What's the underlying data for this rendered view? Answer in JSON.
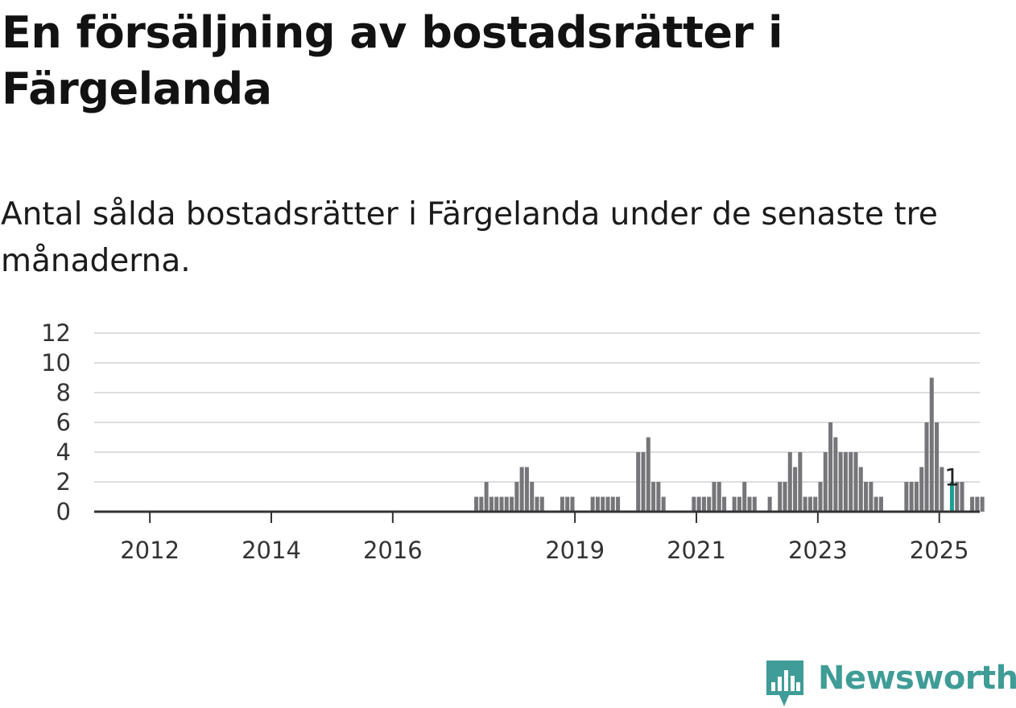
{
  "header": {
    "title": "En försäljning av bostadsrätter i Färgelanda",
    "subtitle": "Antal sålda bostadsrätter i Färgelanda under de senaste tre månaderna."
  },
  "branding": {
    "logo_text": "Newsworthy",
    "logo_icon": "bar-chart-speech-bubble-icon",
    "color": "#3f9c96"
  },
  "colors": {
    "bar": "#76767a",
    "highlight": "#1f9e93",
    "grid": "#dddddd",
    "axis": "#333333"
  },
  "chart_data": {
    "type": "bar",
    "title": "En försäljning av bostadsrätter i Färgelanda",
    "subtitle": "Antal sålda bostadsrätter i Färgelanda under de senaste tre månaderna.",
    "x_unit": "month",
    "x_start": "2011-04",
    "x_end": "2025-03",
    "xlim": [
      "2011-02",
      "2025-09"
    ],
    "ylim": [
      0,
      12
    ],
    "yticks": [
      0,
      2,
      4,
      6,
      8,
      10,
      12
    ],
    "xticks": [
      {
        "label": "2012",
        "month": "2012-01"
      },
      {
        "label": "2014",
        "month": "2014-01"
      },
      {
        "label": "2016",
        "month": "2016-01"
      },
      {
        "label": "2019",
        "month": "2019-01"
      },
      {
        "label": "2021",
        "month": "2021-01"
      },
      {
        "label": "2023",
        "month": "2023-01"
      },
      {
        "label": "2025",
        "month": "2025-01"
      }
    ],
    "grid": true,
    "legend": false,
    "series": [
      {
        "values": [
          0,
          0,
          0,
          0,
          0,
          0,
          0,
          0,
          0,
          0,
          0,
          0,
          0,
          0,
          0,
          0,
          0,
          0,
          0,
          0,
          0,
          0,
          0,
          0,
          0,
          0,
          0,
          0,
          0,
          0,
          0,
          0,
          0,
          0,
          0,
          0,
          0,
          0,
          0,
          0,
          0,
          0,
          0,
          0,
          0,
          0,
          0,
          0,
          0,
          0,
          0,
          0,
          0,
          0,
          0,
          0,
          0,
          0,
          0,
          0,
          0,
          0,
          0,
          0,
          0,
          0,
          0,
          0,
          0,
          0,
          0,
          0,
          0,
          1,
          1,
          2,
          1,
          1,
          1,
          1,
          1,
          2,
          3,
          3,
          2,
          1,
          1,
          0,
          0,
          0,
          1,
          1,
          1,
          0,
          0,
          0,
          1,
          1,
          1,
          1,
          1,
          1,
          0,
          0,
          0,
          4,
          4,
          5,
          2,
          2,
          1,
          0,
          0,
          0,
          0,
          0,
          1,
          1,
          1,
          1,
          2,
          2,
          1,
          0,
          1,
          1,
          2,
          1,
          1,
          0,
          0,
          1,
          0,
          2,
          2,
          4,
          3,
          4,
          1,
          1,
          1,
          2,
          4,
          6,
          5,
          4,
          4,
          4,
          4,
          3,
          2,
          2,
          1,
          1,
          0,
          0,
          0,
          0,
          2,
          2,
          2,
          3,
          6,
          9,
          6,
          3,
          0,
          2,
          2,
          2,
          0,
          1,
          1,
          1
        ]
      }
    ],
    "highlight": {
      "month": "2025-03",
      "value": 1,
      "label": "1"
    }
  }
}
